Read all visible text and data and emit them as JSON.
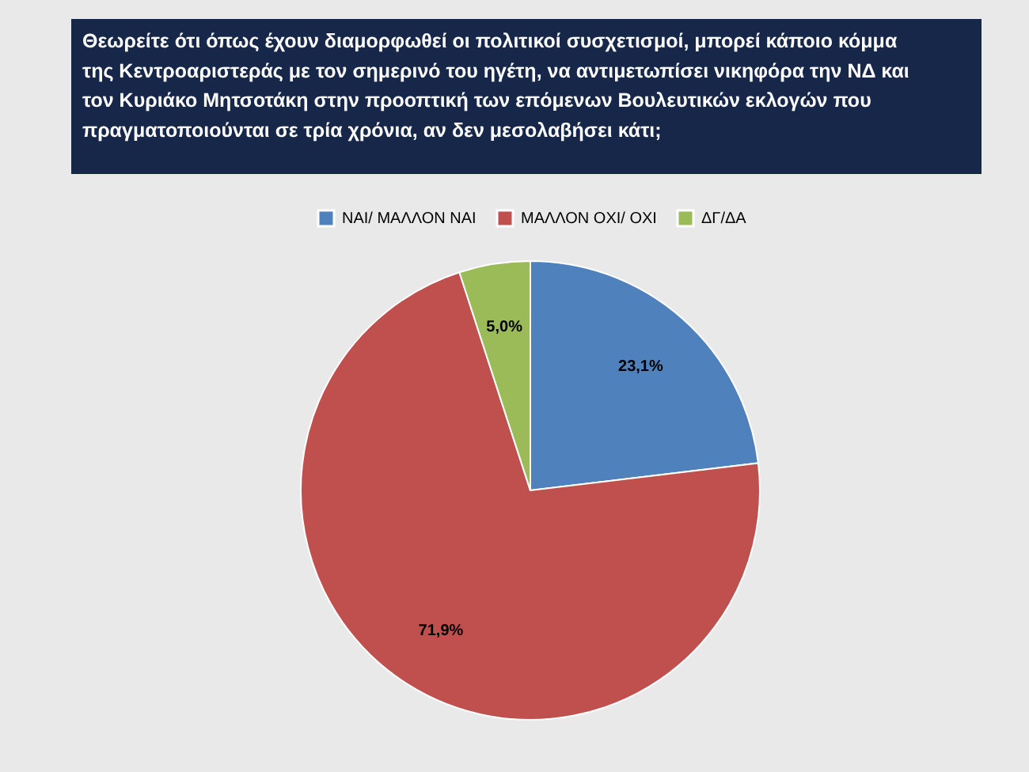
{
  "chart_data": {
    "type": "pie",
    "title": "Θεωρείτε ότι όπως έχουν διαμορφωθεί οι πολιτικοί συσχετισμοί, μπορεί κάποιο κόμμα της Κεντροαριστεράς με τον σημερινό του ηγέτη, να αντιμετωπίσει νικηφόρα την ΝΔ και τον Κυριάκο Μητσοτάκη στην προοπτική των επόμενων Βουλευτικών εκλογών που πραγματοποιούνται σε τρία χρόνια, αν δεν μεσολαβήσει κάτι;",
    "categories": [
      "ΝΑΙ/ ΜΑΛΛΟΝ ΝΑΙ",
      "ΜΑΛΛΟΝ ΟΧΙ/ ΟΧΙ",
      "ΔΓ/ΔΑ"
    ],
    "values": [
      23.1,
      71.9,
      5.0
    ],
    "value_labels": [
      "23,1%",
      "71,9%",
      "5,0%"
    ],
    "colors": [
      "#4f81bd",
      "#c0504d",
      "#9bbb59"
    ],
    "legend": "top"
  }
}
